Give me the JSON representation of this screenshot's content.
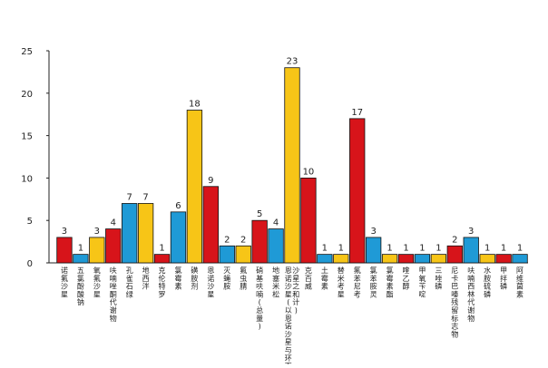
{
  "chart_data": {
    "type": "bar",
    "title": "",
    "xlabel": "",
    "ylabel": "",
    "ylim": [
      0,
      25
    ],
    "yticks": [
      0,
      5,
      10,
      15,
      20,
      25
    ],
    "grid": false,
    "colors": {
      "red": "#d7141a",
      "blue": "#1f9ad6",
      "yellow": "#f7c517"
    },
    "categories": [
      "诺氟沙星",
      "五氯酚酸钠",
      "氧氟沙星",
      "呋喃唑酮代谢物",
      "孔雀石绿",
      "地西泮",
      "克伦特罗",
      "氯霉素",
      "磺胺剂",
      "恩诺沙星",
      "灭蝇胺",
      "氟虫腈",
      "硝基呋喃(总量)",
      "地塞米松",
      "恩诺沙星(以恩诺沙星与环丙沙星之和计)",
      "克百威",
      "土霉素",
      "替米考星",
      "氟苯尼考",
      "氯苯胺灵",
      "氯霉素酯",
      "喹乙醇",
      "甲氧苄啶",
      "三唑磷",
      "尼卡巴嗪残留标志物",
      "呋喃西林代谢物",
      "水胺硫磷",
      "甲拌磷",
      "阿维菌素"
    ],
    "values": [
      3,
      1,
      3,
      4,
      7,
      7,
      1,
      6,
      18,
      9,
      2,
      2,
      5,
      4,
      23,
      10,
      1,
      1,
      17,
      3,
      1,
      1,
      1,
      1,
      2,
      3,
      1,
      1,
      1
    ],
    "bar_colors": [
      "red",
      "blue",
      "yellow",
      "red",
      "blue",
      "yellow",
      "red",
      "blue",
      "yellow",
      "red",
      "blue",
      "yellow",
      "red",
      "blue",
      "yellow",
      "red",
      "blue",
      "yellow",
      "red",
      "blue",
      "yellow",
      "red",
      "blue",
      "yellow",
      "red",
      "blue",
      "yellow",
      "red",
      "blue"
    ]
  }
}
